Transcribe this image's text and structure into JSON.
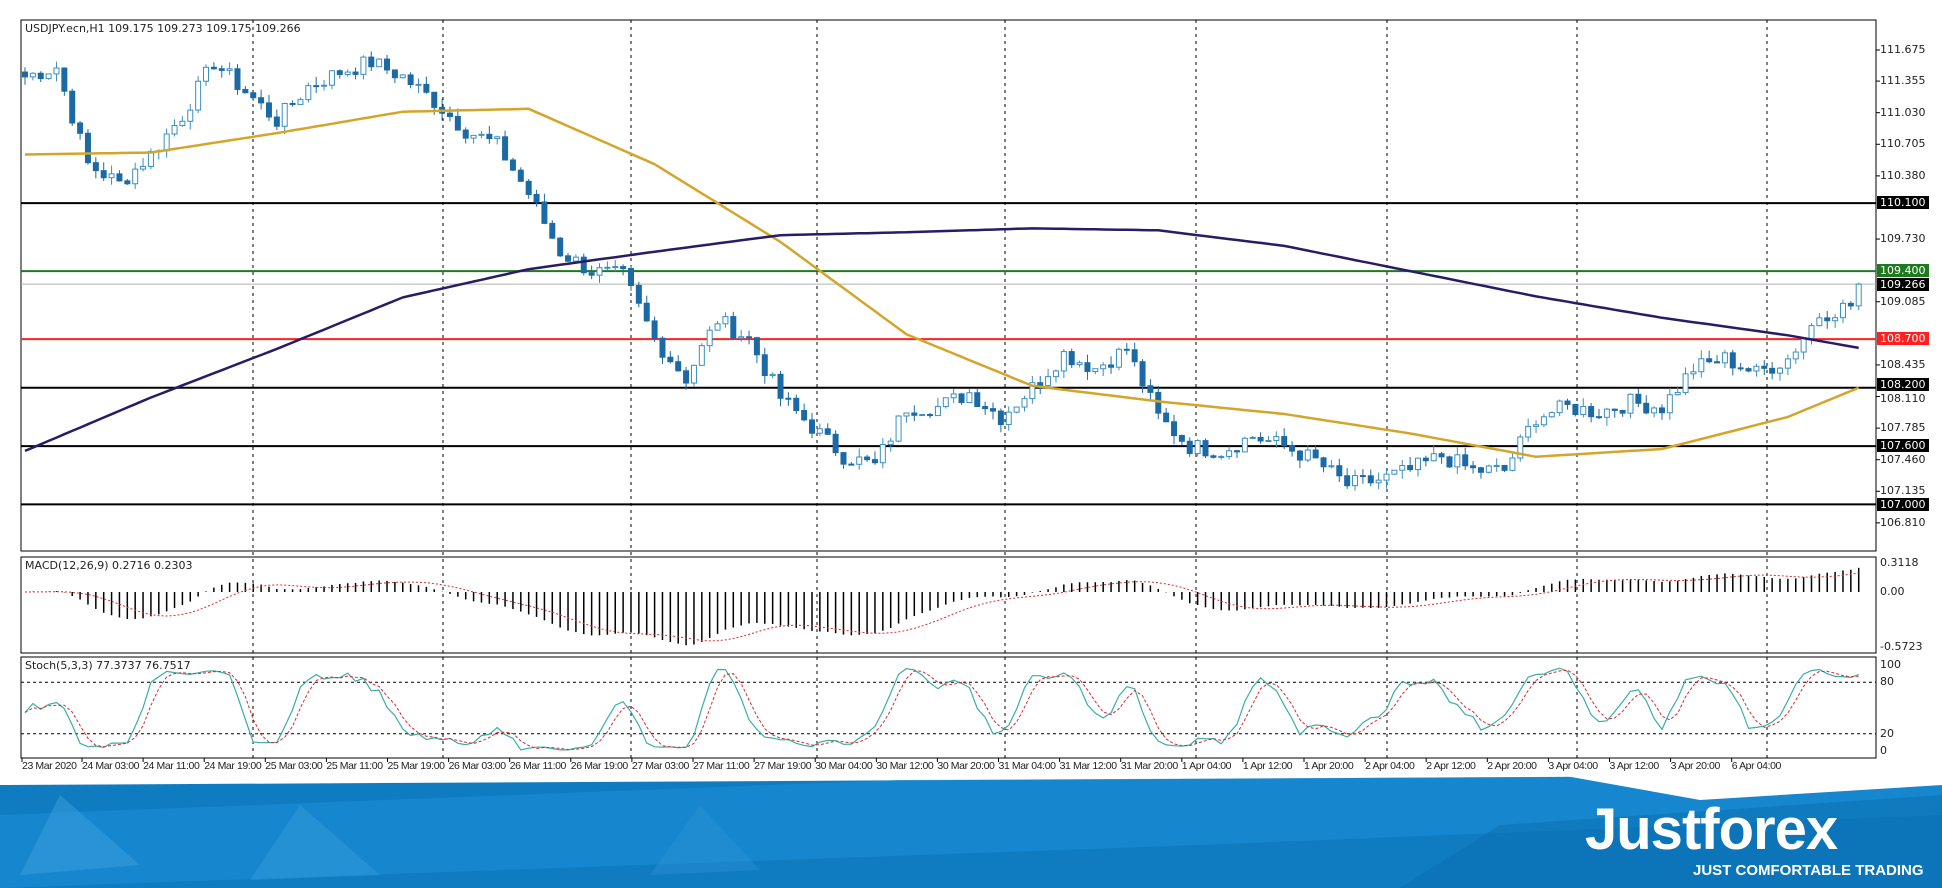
{
  "header": {
    "symbol_info": "USDJPY.ecn,H1  109.175 109.273 109.175 109.266"
  },
  "indicators": {
    "macd_label": "MACD(12,26,9) 0.2716 0.2303",
    "stoch_label": "Stoch(5,3,3) 77.3737 76.7517"
  },
  "price_axis": [
    "111.675",
    "111.355",
    "111.030",
    "110.705",
    "110.380",
    "109.730",
    "109.085",
    "108.435",
    "108.110",
    "107.785",
    "107.460",
    "107.135",
    "106.810"
  ],
  "macd_axis": [
    "0.3118",
    "0.00",
    "-0.5723"
  ],
  "stoch_axis": [
    "100",
    "80",
    "20",
    "0"
  ],
  "levels": [
    {
      "value": "110.100",
      "color": "#000000"
    },
    {
      "value": "109.400",
      "color": "#1e7a1e"
    },
    {
      "value": "109.266",
      "color": "#000000",
      "line": "#b0b0b0"
    },
    {
      "value": "108.700",
      "color": "#ff2020"
    },
    {
      "value": "108.200",
      "color": "#000000"
    },
    {
      "value": "107.600",
      "color": "#000000"
    },
    {
      "value": "107.000",
      "color": "#000000"
    }
  ],
  "time_axis": [
    "23 Mar 2020",
    "24 Mar 03:00",
    "24 Mar 11:00",
    "24 Mar 19:00",
    "25 Mar 03:00",
    "25 Mar 11:00",
    "25 Mar 19:00",
    "26 Mar 03:00",
    "26 Mar 11:00",
    "26 Mar 19:00",
    "27 Mar 03:00",
    "27 Mar 11:00",
    "27 Mar 19:00",
    "30 Mar 04:00",
    "30 Mar 12:00",
    "30 Mar 20:00",
    "31 Mar 04:00",
    "31 Mar 12:00",
    "31 Mar 20:00",
    "1 Apr 04:00",
    "1 Apr 12:00",
    "1 Apr 20:00",
    "2 Apr 04:00",
    "2 Apr 12:00",
    "2 Apr 20:00",
    "3 Apr 04:00",
    "3 Apr 12:00",
    "3 Apr 20:00",
    "6 Apr 04:00"
  ],
  "branding": {
    "logo": "Justforex",
    "slogan": "JUST COMFORTABLE TRADING"
  },
  "chart_data": {
    "type": "candlestick",
    "symbol": "USDJPY.ecn",
    "timeframe": "H1",
    "ylim": [
      106.81,
      111.675
    ],
    "close_every_4_bars": [
      111.4,
      111.5,
      110.5,
      110.3,
      110.6,
      111.0,
      111.55,
      111.25,
      110.95,
      111.3,
      111.45,
      111.55,
      111.4,
      111.15,
      110.85,
      110.7,
      110.2,
      109.6,
      109.4,
      109.35,
      108.7,
      108.3,
      108.9,
      108.7,
      108.1,
      107.8,
      107.5,
      107.4,
      108.0,
      108.0,
      108.15,
      107.9,
      108.2,
      108.55,
      108.4,
      108.6,
      107.9,
      107.6,
      107.55,
      107.7,
      107.6,
      107.45,
      107.2,
      107.25,
      107.35,
      107.5,
      107.35,
      107.35,
      107.9,
      108.0,
      107.95,
      108.05,
      108.0,
      108.4,
      108.5,
      108.35,
      108.5,
      108.95,
      109.05,
      109.266
    ],
    "ma_yellow_every_16_bars": [
      110.6,
      110.62,
      110.82,
      111.04,
      111.07,
      110.5,
      109.7,
      108.75,
      108.22,
      108.06,
      107.93,
      107.73,
      107.49,
      107.57,
      107.9,
      108.2
    ],
    "ma_purple_every_16_bars": [
      107.55,
      108.1,
      108.6,
      109.13,
      109.42,
      109.6,
      109.77,
      109.8,
      109.84,
      109.82,
      109.66,
      109.4,
      109.14,
      108.92,
      108.74,
      108.61
    ],
    "macd": {
      "params": "12,26,9",
      "main": 0.2716,
      "signal": 0.2303,
      "ylim": [
        -0.5723,
        0.3118
      ]
    },
    "stoch": {
      "params": "5,3,3",
      "main": 77.3737,
      "signal": 76.7517,
      "levels": [
        20,
        80
      ],
      "ylim": [
        0,
        100
      ]
    },
    "colors": {
      "bull": "#3a8fbf",
      "bear": "#1b6aa5",
      "ma_yellow": "#d4a52a",
      "ma_purple": "#2a1b66",
      "macd_signal": "#d03030",
      "stoch_main": "#3aaea6",
      "stoch_signal": "#d03030"
    }
  }
}
